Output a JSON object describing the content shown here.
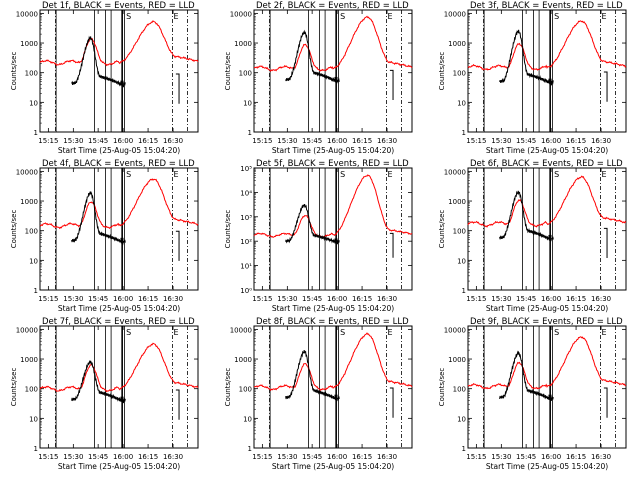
{
  "figure": {
    "colors": {
      "background": "#ffffff",
      "axes": "#000000",
      "events": "#000000",
      "lld": "#ff0000"
    },
    "marker_labels": [
      "S",
      "E"
    ]
  },
  "chart_data": [
    {
      "type": "line",
      "title": "Det  1f, BLACK = Events, RED = LLD",
      "xlabel": "Start Time (25-Aug-05 15:04:20)",
      "ylabel": "Counts/sec",
      "x_ticks": [
        "15:15",
        "15:30",
        "15:45",
        "16:00",
        "16:15",
        "16:30"
      ],
      "y_ticks": [
        "1",
        "10",
        "100",
        "1000",
        "10000"
      ],
      "y_scale": "log",
      "ylim": [
        1,
        13000
      ],
      "series": [
        {
          "name": "Events",
          "color": "#000000",
          "peak": 1500,
          "base": 30
        },
        {
          "name": "LLD",
          "color": "#ff0000",
          "peak": 5200,
          "base": 220
        }
      ]
    },
    {
      "type": "line",
      "title": "Det  2f, BLACK = Events, RED = LLD",
      "xlabel": "Start Time (25-Aug-05 15:04:20)",
      "ylabel": "Counts/sec",
      "x_ticks": [
        "15:15",
        "15:30",
        "15:45",
        "16:00",
        "16:15",
        "16:30"
      ],
      "y_ticks": [
        "1",
        "10",
        "100",
        "1000",
        "10000"
      ],
      "y_scale": "log",
      "ylim": [
        1,
        13000
      ],
      "series": [
        {
          "name": "Events",
          "color": "#000000",
          "peak": 2300,
          "base": 40
        },
        {
          "name": "LLD",
          "color": "#ff0000",
          "peak": 7500,
          "base": 140
        }
      ]
    },
    {
      "type": "line",
      "title": "Det  3f, BLACK = Events, RED = LLD",
      "xlabel": "Start Time (25-Aug-05 15:04:20)",
      "ylabel": "Counts/sec",
      "x_ticks": [
        "15:15",
        "15:30",
        "15:45",
        "16:00",
        "16:15",
        "16:30"
      ],
      "y_ticks": [
        "1",
        "10",
        "100",
        "1000",
        "10000"
      ],
      "y_scale": "log",
      "ylim": [
        1,
        13000
      ],
      "series": [
        {
          "name": "Events",
          "color": "#000000",
          "peak": 2500,
          "base": 35
        },
        {
          "name": "LLD",
          "color": "#ff0000",
          "peak": 5500,
          "base": 150
        }
      ]
    },
    {
      "type": "line",
      "title": "Det  4f, BLACK = Events, RED = LLD",
      "xlabel": "Start Time (25-Aug-05 15:04:20)",
      "ylabel": "Counts/sec",
      "x_ticks": [
        "15:15",
        "15:30",
        "15:45",
        "16:00",
        "16:15",
        "16:30"
      ],
      "y_ticks": [
        "1",
        "10",
        "100",
        "1000",
        "10000"
      ],
      "y_scale": "log",
      "ylim": [
        1,
        13000
      ],
      "series": [
        {
          "name": "Events",
          "color": "#000000",
          "peak": 1900,
          "base": 32
        },
        {
          "name": "LLD",
          "color": "#ff0000",
          "peak": 5500,
          "base": 150
        }
      ]
    },
    {
      "type": "line",
      "title": "Det  5f, BLACK = Events, RED = LLD",
      "xlabel": "Start Time (25-Aug-05 15:04:20)",
      "ylabel": "Counts/sec",
      "x_ticks": [
        "15:15",
        "15:30",
        "15:45",
        "16:00",
        "16:15",
        "16:30"
      ],
      "y_ticks": [
        "10⁰",
        "10¹",
        "10²",
        "10³",
        "10⁴",
        "10⁵"
      ],
      "y_scale": "log",
      "ylim": [
        1,
        100000
      ],
      "series": [
        {
          "name": "Events",
          "color": "#000000",
          "peak": 3000,
          "base": 70
        },
        {
          "name": "LLD",
          "color": "#ff0000",
          "peak": 50000,
          "base": 180
        }
      ]
    },
    {
      "type": "line",
      "title": "Det  6f, BLACK = Events, RED = LLD",
      "xlabel": "Start Time (25-Aug-05 15:04:20)",
      "ylabel": "Counts/sec",
      "x_ticks": [
        "15:15",
        "15:30",
        "15:45",
        "16:00",
        "16:15",
        "16:30"
      ],
      "y_ticks": [
        "1",
        "10",
        "100",
        "1000",
        "10000"
      ],
      "y_scale": "log",
      "ylim": [
        1,
        13000
      ],
      "series": [
        {
          "name": "Events",
          "color": "#000000",
          "peak": 2000,
          "base": 40
        },
        {
          "name": "LLD",
          "color": "#ff0000",
          "peak": 6500,
          "base": 170
        }
      ]
    },
    {
      "type": "line",
      "title": "Det  7f, BLACK = Events, RED = LLD",
      "xlabel": "Start Time (25-Aug-05 15:04:20)",
      "ylabel": "Counts/sec",
      "x_ticks": [
        "15:15",
        "15:30",
        "15:45",
        "16:00",
        "16:15",
        "16:30"
      ],
      "y_ticks": [
        "1",
        "10",
        "100",
        "1000",
        "10000"
      ],
      "y_scale": "log",
      "ylim": [
        1,
        13000
      ],
      "series": [
        {
          "name": "Events",
          "color": "#000000",
          "peak": 800,
          "base": 30
        },
        {
          "name": "LLD",
          "color": "#ff0000",
          "peak": 3200,
          "base": 100
        }
      ]
    },
    {
      "type": "line",
      "title": "Det  8f, BLACK = Events, RED = LLD",
      "xlabel": "Start Time (25-Aug-05 15:04:20)",
      "ylabel": "Counts/sec",
      "x_ticks": [
        "15:15",
        "15:30",
        "15:45",
        "16:00",
        "16:15",
        "16:30"
      ],
      "y_ticks": [
        "1",
        "10",
        "100",
        "1000",
        "10000"
      ],
      "y_scale": "log",
      "ylim": [
        1,
        13000
      ],
      "series": [
        {
          "name": "Events",
          "color": "#000000",
          "peak": 1800,
          "base": 35
        },
        {
          "name": "LLD",
          "color": "#ff0000",
          "peak": 7000,
          "base": 110
        }
      ]
    },
    {
      "type": "line",
      "title": "Det  9f, BLACK = Events, RED = LLD",
      "xlabel": "Start Time (25-Aug-05 15:04:20)",
      "ylabel": "Counts/sec",
      "x_ticks": [
        "15:15",
        "15:30",
        "15:45",
        "16:00",
        "16:15",
        "16:30"
      ],
      "y_ticks": [
        "1",
        "10",
        "100",
        "1000",
        "10000"
      ],
      "y_scale": "log",
      "ylim": [
        1,
        13000
      ],
      "series": [
        {
          "name": "Events",
          "color": "#000000",
          "peak": 1600,
          "base": 35
        },
        {
          "name": "LLD",
          "color": "#ff0000",
          "peak": 5500,
          "base": 120
        }
      ]
    }
  ]
}
